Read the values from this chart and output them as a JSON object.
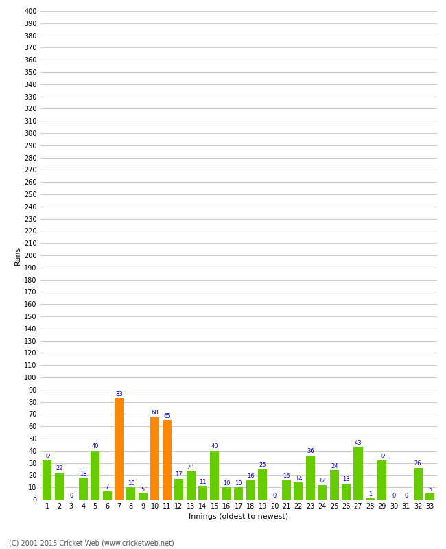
{
  "innings": [
    1,
    2,
    3,
    4,
    5,
    6,
    7,
    8,
    9,
    10,
    11,
    12,
    13,
    14,
    15,
    16,
    17,
    18,
    19,
    20,
    21,
    22,
    23,
    24,
    25,
    26,
    27,
    28,
    29,
    30,
    31,
    32,
    33
  ],
  "runs": [
    32,
    22,
    0,
    18,
    40,
    7,
    83,
    10,
    5,
    68,
    65,
    17,
    23,
    11,
    40,
    10,
    10,
    16,
    25,
    0,
    16,
    14,
    36,
    12,
    24,
    13,
    43,
    1,
    32,
    0,
    0,
    26,
    5
  ],
  "colors": [
    "#66cc00",
    "#66cc00",
    "#66cc00",
    "#66cc00",
    "#66cc00",
    "#66cc00",
    "#ff8800",
    "#66cc00",
    "#66cc00",
    "#ff8800",
    "#ff8800",
    "#66cc00",
    "#66cc00",
    "#66cc00",
    "#66cc00",
    "#66cc00",
    "#66cc00",
    "#66cc00",
    "#66cc00",
    "#66cc00",
    "#66cc00",
    "#66cc00",
    "#66cc00",
    "#66cc00",
    "#66cc00",
    "#66cc00",
    "#66cc00",
    "#66cc00",
    "#66cc00",
    "#66cc00",
    "#66cc00",
    "#66cc00",
    "#66cc00"
  ],
  "xlabel": "Innings (oldest to newest)",
  "ylabel": "Runs",
  "ylim": [
    0,
    400
  ],
  "yticks": [
    0,
    10,
    20,
    30,
    40,
    50,
    60,
    70,
    80,
    90,
    100,
    110,
    120,
    130,
    140,
    150,
    160,
    170,
    180,
    190,
    200,
    210,
    220,
    230,
    240,
    250,
    260,
    270,
    280,
    290,
    300,
    310,
    320,
    330,
    340,
    350,
    360,
    370,
    380,
    390,
    400
  ],
  "bg_color": "#ffffff",
  "grid_color": "#cccccc",
  "label_color": "#0000cc",
  "footer": "(C) 2001-2015 Cricket Web (www.cricketweb.net)"
}
